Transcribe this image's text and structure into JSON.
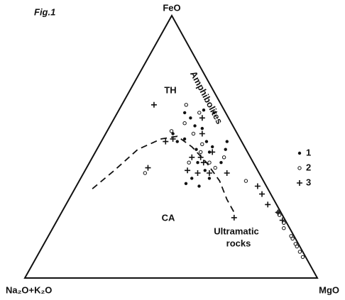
{
  "chart_data": {
    "type": "ternary",
    "title": "Fig.1",
    "vertex_labels": {
      "top": "FeO",
      "left": "Na₂O+K₂O",
      "right": "MgO"
    },
    "annotations": [
      "TH",
      "CA",
      "Amphibolites",
      "Ultramatic",
      "rocks"
    ],
    "color": "#111111",
    "series": [
      {
        "name": "1",
        "marker": "dot",
        "values": [
          [
            63,
            23
          ],
          [
            61,
            26
          ],
          [
            58,
            29
          ],
          [
            57,
            32
          ],
          [
            53,
            28
          ],
          [
            55,
            23
          ],
          [
            52,
            26
          ],
          [
            52,
            36
          ],
          [
            50,
            39
          ],
          [
            49,
            34
          ],
          [
            48,
            39
          ],
          [
            44,
            37
          ],
          [
            41,
            41
          ],
          [
            38,
            38
          ],
          [
            35,
            42
          ],
          [
            36,
            37
          ],
          [
            38,
            44
          ],
          [
            44,
            45
          ],
          [
            49,
            44
          ],
          [
            52,
            43
          ],
          [
            63,
            33
          ],
          [
            64,
            29
          ]
        ]
      },
      {
        "name": "2",
        "marker": "circle",
        "values": [
          [
            59,
            25
          ],
          [
            55,
            30
          ],
          [
            56,
            22
          ],
          [
            51,
            35
          ],
          [
            44,
            41
          ],
          [
            42,
            44
          ],
          [
            46,
            45
          ],
          [
            44,
            34
          ],
          [
            40,
            21
          ],
          [
            37,
            57
          ],
          [
            25,
            74
          ],
          [
            24,
            75
          ],
          [
            19,
            79
          ],
          [
            15,
            84
          ],
          [
            12,
            87
          ],
          [
            10,
            89
          ],
          [
            21,
            78
          ],
          [
            16,
            83
          ],
          [
            13,
            86
          ],
          [
            8,
            91
          ],
          [
            66,
            22
          ],
          [
            63,
            28
          ],
          [
            48,
            36
          ]
        ]
      },
      {
        "name": "3",
        "marker": "plus",
        "values": [
          [
            66,
            11
          ],
          [
            53,
            24
          ],
          [
            55,
            33
          ],
          [
            46,
            37
          ],
          [
            41,
            35
          ],
          [
            46,
            34
          ],
          [
            44,
            39
          ],
          [
            40,
            43
          ],
          [
            40,
            49
          ],
          [
            40,
            39
          ],
          [
            35,
            62
          ],
          [
            32,
            65
          ],
          [
            28,
            69
          ],
          [
            23,
            60
          ],
          [
            52,
            22
          ],
          [
            25,
            74
          ],
          [
            22,
            77
          ],
          [
            42,
            21
          ],
          [
            48,
            40
          ],
          [
            61,
            30
          ]
        ]
      }
    ],
    "boundary": [
      [
        34,
        6
      ],
      [
        41,
        10
      ],
      [
        49,
        14
      ],
      [
        53,
        20
      ],
      [
        54,
        25
      ],
      [
        50,
        32
      ],
      [
        44,
        40
      ],
      [
        37,
        48
      ],
      [
        30,
        54
      ],
      [
        24,
        60
      ]
    ]
  }
}
